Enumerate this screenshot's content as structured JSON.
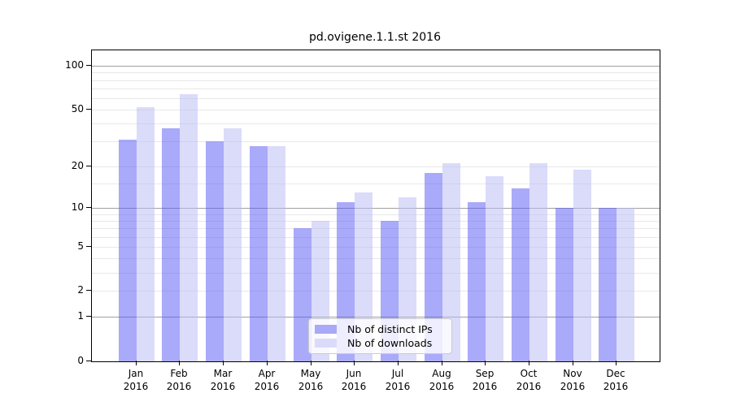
{
  "title": "pd.ovigene.1.1.st 2016",
  "chart_data": {
    "type": "bar",
    "title": "pd.ovigene.1.1.st 2016",
    "categories": [
      "Jan\n2016",
      "Feb\n2016",
      "Mar\n2016",
      "Apr\n2016",
      "May\n2016",
      "Jun\n2016",
      "Jul\n2016",
      "Aug\n2016",
      "Sep\n2016",
      "Oct\n2016",
      "Nov\n2016",
      "Dec\n2016"
    ],
    "series": [
      {
        "name": "Nb of distinct IPs",
        "color": "rgba(85,85,245,0.5)",
        "legend_color": "#a9a9f8",
        "values": [
          31,
          37,
          30,
          28,
          7,
          11,
          8,
          18,
          11,
          14,
          10,
          10
        ]
      },
      {
        "name": "Nb of downloads",
        "color": "rgba(186,186,246,0.52)",
        "legend_color": "#dbdbf9",
        "values": [
          52,
          64,
          37,
          28,
          8,
          13,
          12,
          21,
          17,
          21,
          19,
          10
        ]
      }
    ],
    "xlabel": "",
    "ylabel": "",
    "y_scale": "log1p",
    "ylim": [
      0,
      128
    ],
    "y_axis": {
      "tick_values": [
        100,
        50,
        20,
        10,
        5,
        2,
        1,
        0
      ],
      "major_gridlines": [
        100,
        10,
        1
      ],
      "light_gridlines": [
        50,
        20,
        5,
        2
      ],
      "minor_gridlines": [
        90,
        80,
        70,
        60,
        40,
        30,
        15,
        9,
        8,
        7,
        6,
        4,
        3
      ]
    },
    "legend": {
      "position": "lower center",
      "entries": [
        "Nb of distinct IPs",
        "Nb of downloads"
      ]
    },
    "colors": {
      "major_grid": "#a0a0a0",
      "minor_grid": "#e8e8e8",
      "axis": "#000000",
      "text": "#000000"
    }
  }
}
